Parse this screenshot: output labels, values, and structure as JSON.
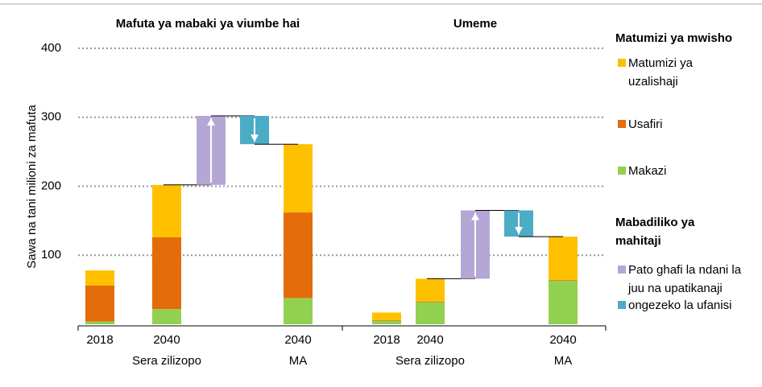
{
  "chart_data": {
    "type": "stacked_waterfall",
    "ylabel": "Sawa na tani milioni za mafuta",
    "ylim": [
      0,
      400
    ],
    "yticks": [
      100,
      200,
      300,
      400
    ],
    "grid": true,
    "legend_heading": "Matumizi ya mwisho",
    "series": [
      {
        "name": "Makazi",
        "color": "#92d050"
      },
      {
        "name": "Usafiri",
        "color": "#e46c0a"
      },
      {
        "name": "Matumizi ya uzalishaji",
        "color": "#ffc000"
      }
    ],
    "changes_heading": "Mabadiliko ya mahitaji",
    "changes": [
      {
        "name": "Pato ghafi la ndani la juu na upatikanaji",
        "color": "#b4a7d6"
      },
      {
        "name": "ongezeko la ufanisi",
        "color": "#4bacc6"
      }
    ],
    "panels": [
      {
        "title": "Mafuta ya mabaki ya viumbe hai",
        "categories": [
          "2018",
          "2040",
          "2040"
        ],
        "groups": [
          "Sera zilizopo",
          "MA"
        ],
        "values": [
          [
            4,
            22,
            38
          ],
          [
            52,
            104,
            124
          ],
          [
            22,
            76,
            99
          ]
        ],
        "change_values": [
          100,
          -41
        ]
      },
      {
        "title": "Umeme",
        "categories": [
          "2018",
          "2040",
          "2040"
        ],
        "groups": [
          "Sera zilizopo",
          "MA"
        ],
        "values": [
          [
            5,
            32,
            63
          ],
          [
            1,
            1,
            1
          ],
          [
            11,
            33,
            63
          ]
        ],
        "change_values": [
          99,
          -38
        ]
      }
    ]
  }
}
